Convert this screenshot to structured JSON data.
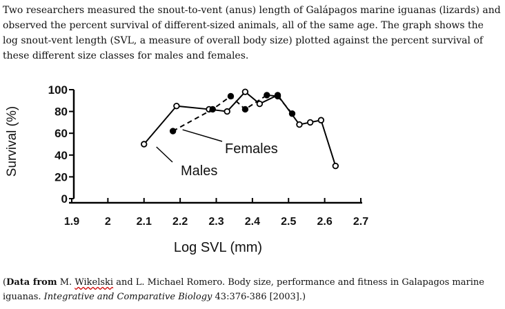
{
  "intro": {
    "text": "Two researchers measured the snout-to-vent (anus) length of Galápagos marine iguanas (lizards) and observed the percent survival of different-sized animals, all of the same age. The graph shows the log snout-vent length (SVL, a measure of overall body size) plotted against the percent survival of these different size classes for males and females."
  },
  "chart_data": {
    "type": "line",
    "xlabel": "Log SVL (mm)",
    "ylabel": "Survival (%)",
    "xlim": [
      1.9,
      2.7
    ],
    "ylim": [
      0,
      100
    ],
    "xticks": [
      "1.9",
      "2",
      "2.1",
      "2.2",
      "2.3",
      "2.4",
      "2.5",
      "2.6",
      "2.7"
    ],
    "yticks": [
      "0",
      "20",
      "40",
      "60",
      "80",
      "100"
    ],
    "series": [
      {
        "name": "Males",
        "style": "solid line, open circles",
        "x": [
          2.1,
          2.19,
          2.28,
          2.33,
          2.38,
          2.42,
          2.47,
          2.53,
          2.56,
          2.59,
          2.63
        ],
        "y": [
          50,
          85,
          82,
          80,
          98,
          87,
          95,
          68,
          70,
          72,
          30
        ]
      },
      {
        "name": "Females",
        "style": "dashed line, filled circles",
        "x": [
          2.18,
          2.29,
          2.34,
          2.38,
          2.44,
          2.47,
          2.51
        ],
        "y": [
          62,
          82,
          94,
          82,
          95,
          94,
          78
        ]
      }
    ],
    "annotations": [
      "Males",
      "Females"
    ]
  },
  "source": {
    "label": "Data from",
    "authors_a": " M. ",
    "author_underlined": "Wikelski",
    "authors_b": " and L. Michael Romero. Body size, performance and fitness in Galapagos marine iguanas. ",
    "journal": "Integrative and Comparative Biology",
    "citation": " 43:376-386 [2003].)"
  },
  "colors": {
    "text": "#111111",
    "lines": "#000000"
  }
}
